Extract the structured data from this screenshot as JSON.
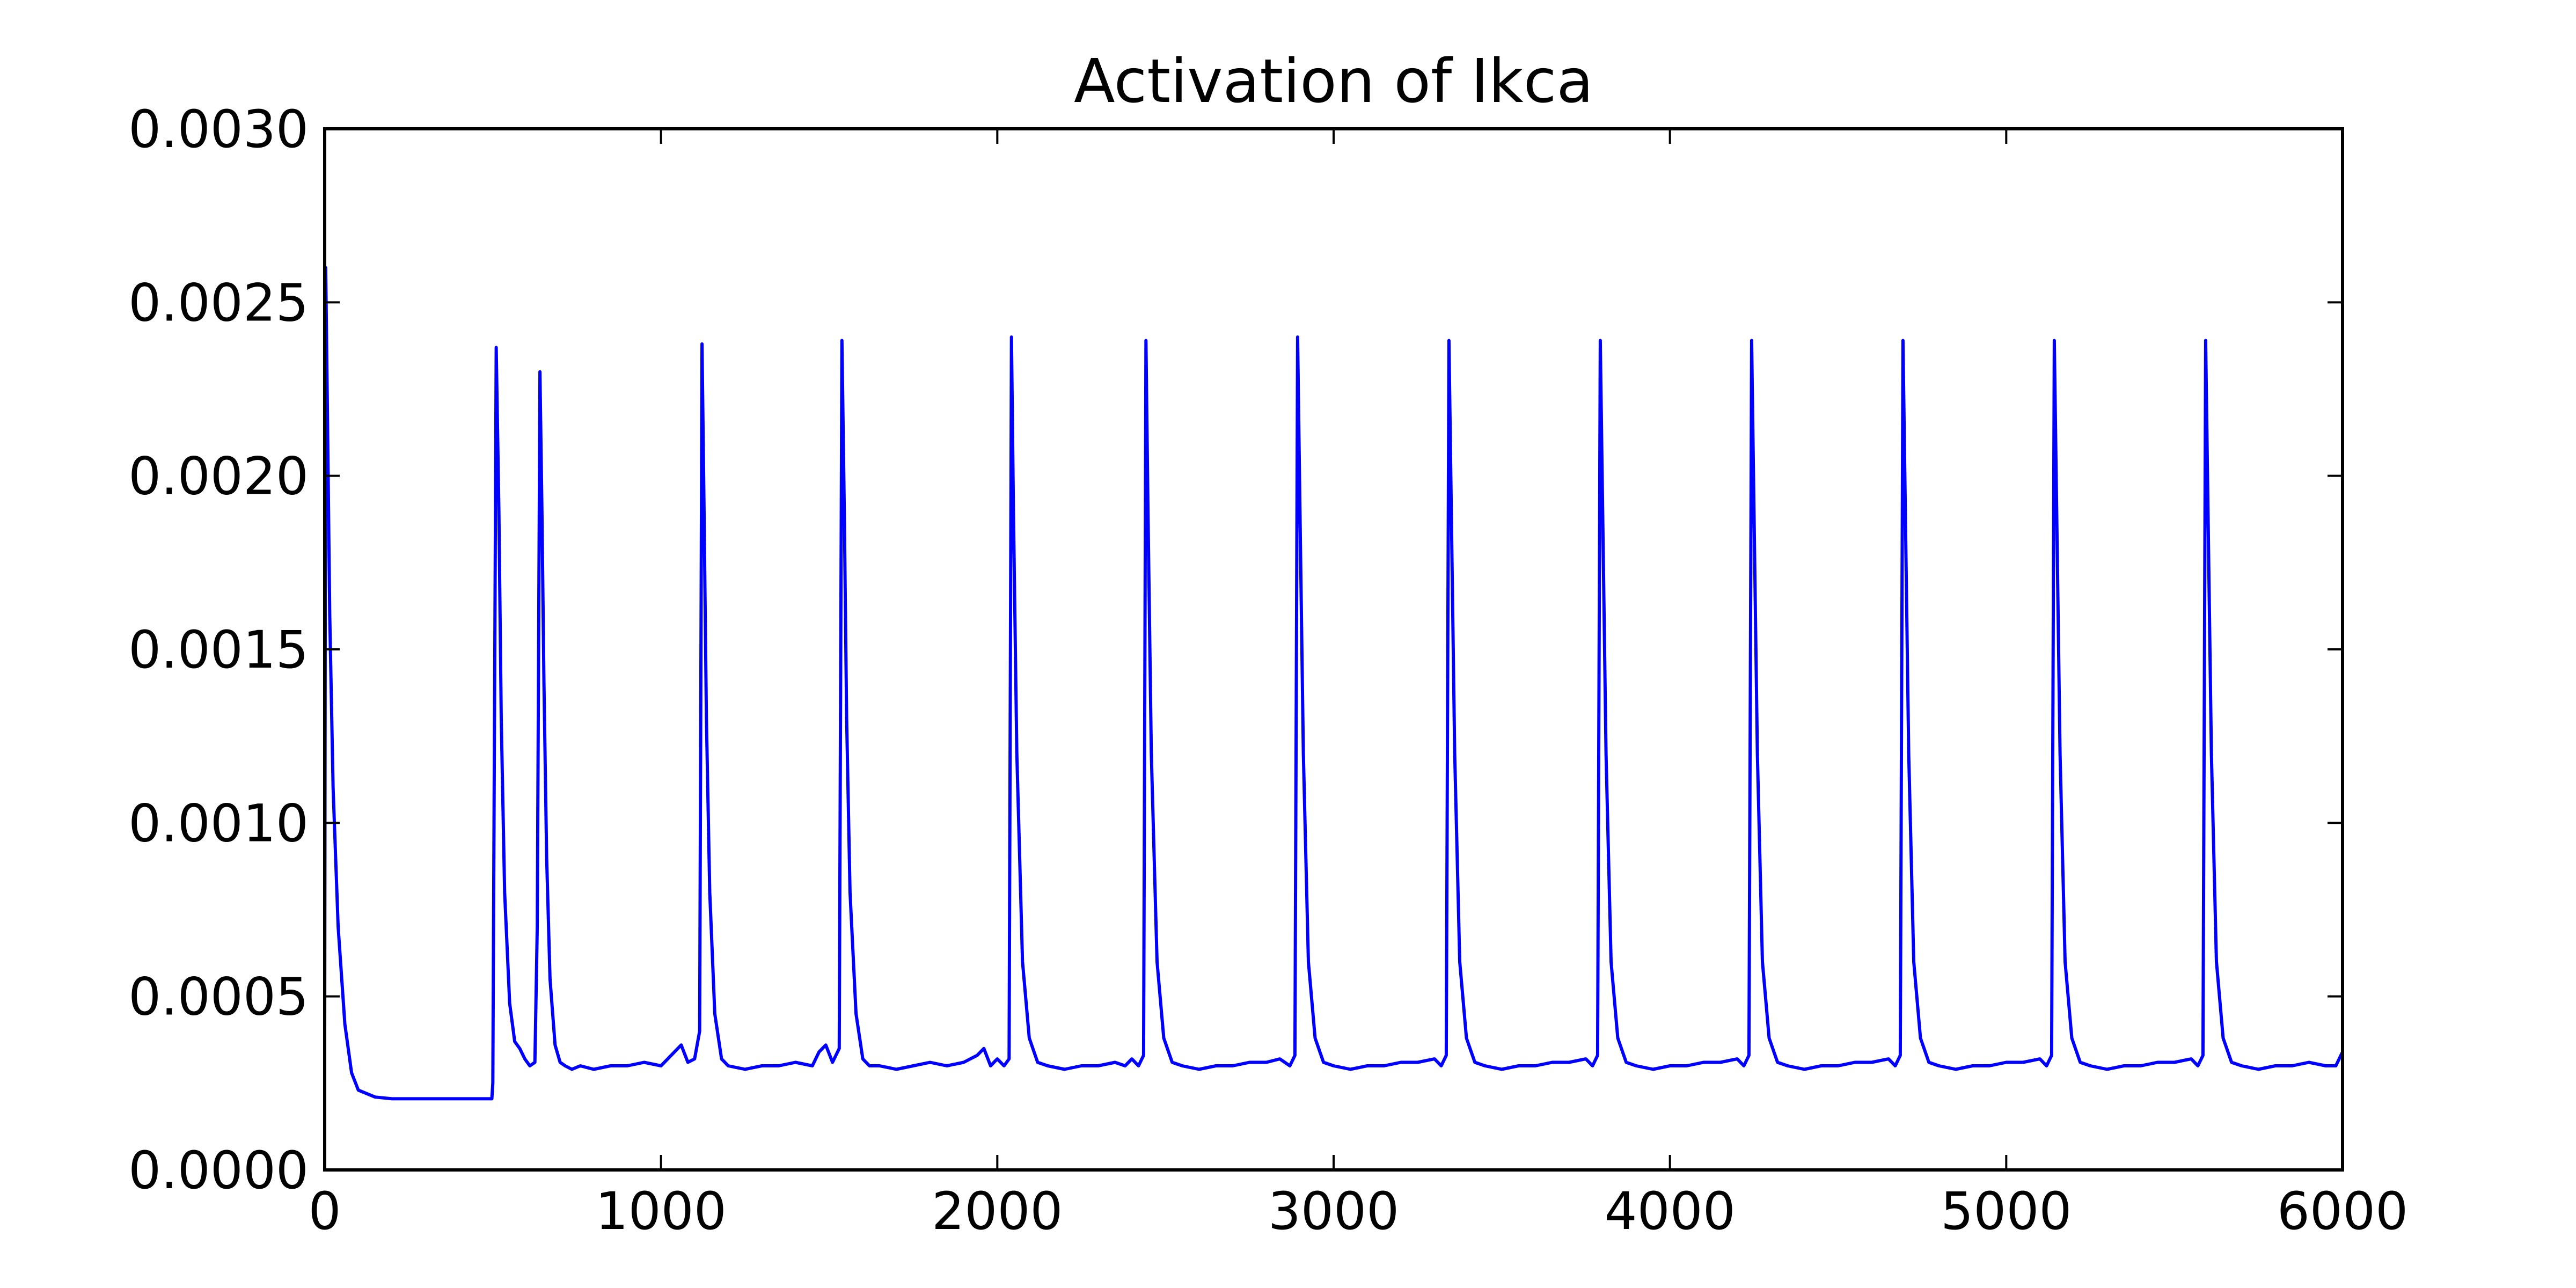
{
  "chart_data": {
    "type": "line",
    "title": "Activation of Ikca",
    "xlabel": "",
    "ylabel": "",
    "xlim": [
      0,
      6000
    ],
    "ylim": [
      0,
      0.003
    ],
    "grid": false,
    "x_ticks": [
      0,
      1000,
      2000,
      3000,
      4000,
      5000,
      6000
    ],
    "x_tick_labels": [
      "0",
      "1000",
      "2000",
      "3000",
      "4000",
      "5000",
      "6000"
    ],
    "y_ticks": [
      0,
      0.0005,
      0.001,
      0.0015,
      0.002,
      0.0025,
      0.003
    ],
    "y_tick_labels": [
      "0.0000",
      "0.0005",
      "0.0010",
      "0.0015",
      "0.0020",
      "0.0025",
      "0.0030"
    ],
    "series": [
      {
        "color": "#0000ff",
        "x": [
          0,
          3,
          8,
          15,
          25,
          40,
          60,
          80,
          100,
          150,
          200,
          300,
          400,
          497,
          500,
          510,
          518,
          525,
          535,
          550,
          565,
          580,
          595,
          610,
          625,
          632,
          640,
          646,
          652,
          660,
          670,
          685,
          700,
          715,
          735,
          760,
          800,
          850,
          900,
          950,
          1000,
          1030,
          1060,
          1080,
          1100,
          1115,
          1122,
          1128,
          1135,
          1145,
          1160,
          1180,
          1200,
          1250,
          1300,
          1350,
          1400,
          1450,
          1470,
          1490,
          1510,
          1530,
          1538,
          1545,
          1552,
          1562,
          1580,
          1600,
          1620,
          1650,
          1700,
          1750,
          1800,
          1850,
          1900,
          1940,
          1960,
          1980,
          2000,
          2020,
          2035,
          2042,
          2048,
          2058,
          2075,
          2095,
          2120,
          2150,
          2200,
          2250,
          2300,
          2350,
          2380,
          2400,
          2420,
          2435,
          2442,
          2448,
          2458,
          2475,
          2495,
          2520,
          2550,
          2600,
          2650,
          2700,
          2750,
          2800,
          2840,
          2870,
          2885,
          2893,
          2900,
          2910,
          2925,
          2945,
          2970,
          3000,
          3050,
          3100,
          3150,
          3200,
          3250,
          3300,
          3320,
          3335,
          3343,
          3350,
          3360,
          3375,
          3395,
          3420,
          3450,
          3500,
          3550,
          3600,
          3650,
          3700,
          3750,
          3770,
          3785,
          3793,
          3800,
          3810,
          3825,
          3845,
          3870,
          3900,
          3950,
          4000,
          4050,
          4100,
          4150,
          4200,
          4220,
          4235,
          4243,
          4250,
          4260,
          4275,
          4295,
          4320,
          4350,
          4400,
          4450,
          4500,
          4550,
          4600,
          4650,
          4670,
          4685,
          4693,
          4700,
          4710,
          4725,
          4745,
          4770,
          4800,
          4850,
          4900,
          4950,
          5000,
          5050,
          5100,
          5120,
          5135,
          5143,
          5150,
          5160,
          5175,
          5195,
          5220,
          5250,
          5300,
          5350,
          5400,
          5450,
          5500,
          5550,
          5570,
          5585,
          5593,
          5600,
          5610,
          5625,
          5645,
          5670,
          5700,
          5750,
          5800,
          5850,
          5900,
          5950,
          5980,
          6000
        ],
        "y": [
          0.0004,
          0.0026,
          0.0022,
          0.0016,
          0.0011,
          0.0007,
          0.00042,
          0.00028,
          0.00023,
          0.00021,
          0.000205,
          0.000205,
          0.000205,
          0.000205,
          0.00025,
          0.00237,
          0.0019,
          0.0013,
          0.0008,
          0.00048,
          0.00037,
          0.00035,
          0.00032,
          0.0003,
          0.00031,
          0.0007,
          0.0023,
          0.0019,
          0.0014,
          0.0009,
          0.00055,
          0.00036,
          0.00031,
          0.0003,
          0.00029,
          0.0003,
          0.00029,
          0.0003,
          0.0003,
          0.00031,
          0.0003,
          0.00033,
          0.00036,
          0.00031,
          0.00032,
          0.0004,
          0.00238,
          0.0019,
          0.0013,
          0.0008,
          0.00045,
          0.00032,
          0.0003,
          0.00029,
          0.0003,
          0.0003,
          0.00031,
          0.0003,
          0.00034,
          0.00036,
          0.00031,
          0.00035,
          0.00239,
          0.0019,
          0.0013,
          0.0008,
          0.00045,
          0.00032,
          0.0003,
          0.0003,
          0.00029,
          0.0003,
          0.00031,
          0.0003,
          0.00031,
          0.00033,
          0.00035,
          0.0003,
          0.00032,
          0.0003,
          0.00032,
          0.0024,
          0.0019,
          0.0012,
          0.0006,
          0.00038,
          0.00031,
          0.0003,
          0.00029,
          0.0003,
          0.0003,
          0.00031,
          0.0003,
          0.00032,
          0.0003,
          0.00033,
          0.00239,
          0.0019,
          0.0012,
          0.0006,
          0.00038,
          0.00031,
          0.0003,
          0.00029,
          0.0003,
          0.0003,
          0.00031,
          0.00031,
          0.00032,
          0.0003,
          0.00033,
          0.0024,
          0.0019,
          0.0012,
          0.0006,
          0.00038,
          0.00031,
          0.0003,
          0.00029,
          0.0003,
          0.0003,
          0.00031,
          0.00031,
          0.00032,
          0.0003,
          0.00033,
          0.00239,
          0.0019,
          0.0012,
          0.0006,
          0.00038,
          0.00031,
          0.0003,
          0.00029,
          0.0003,
          0.0003,
          0.00031,
          0.00031,
          0.00032,
          0.0003,
          0.00033,
          0.00239,
          0.0019,
          0.0012,
          0.0006,
          0.00038,
          0.00031,
          0.0003,
          0.00029,
          0.0003,
          0.0003,
          0.00031,
          0.00031,
          0.00032,
          0.0003,
          0.00033,
          0.00239,
          0.0019,
          0.0012,
          0.0006,
          0.00038,
          0.00031,
          0.0003,
          0.00029,
          0.0003,
          0.0003,
          0.00031,
          0.00031,
          0.00032,
          0.0003,
          0.00033,
          0.00239,
          0.0019,
          0.0012,
          0.0006,
          0.00038,
          0.00031,
          0.0003,
          0.00029,
          0.0003,
          0.0003,
          0.00031,
          0.00031,
          0.00032,
          0.0003,
          0.00033,
          0.00239,
          0.0019,
          0.0012,
          0.0006,
          0.00038,
          0.00031,
          0.0003,
          0.00029,
          0.0003,
          0.0003,
          0.00031,
          0.00031,
          0.00032,
          0.0003,
          0.00033,
          0.00239,
          0.0019,
          0.0012,
          0.0006,
          0.00038,
          0.00031,
          0.0003,
          0.00029,
          0.0003,
          0.0003,
          0.00031,
          0.0003,
          0.0003,
          0.00034
        ]
      }
    ]
  }
}
